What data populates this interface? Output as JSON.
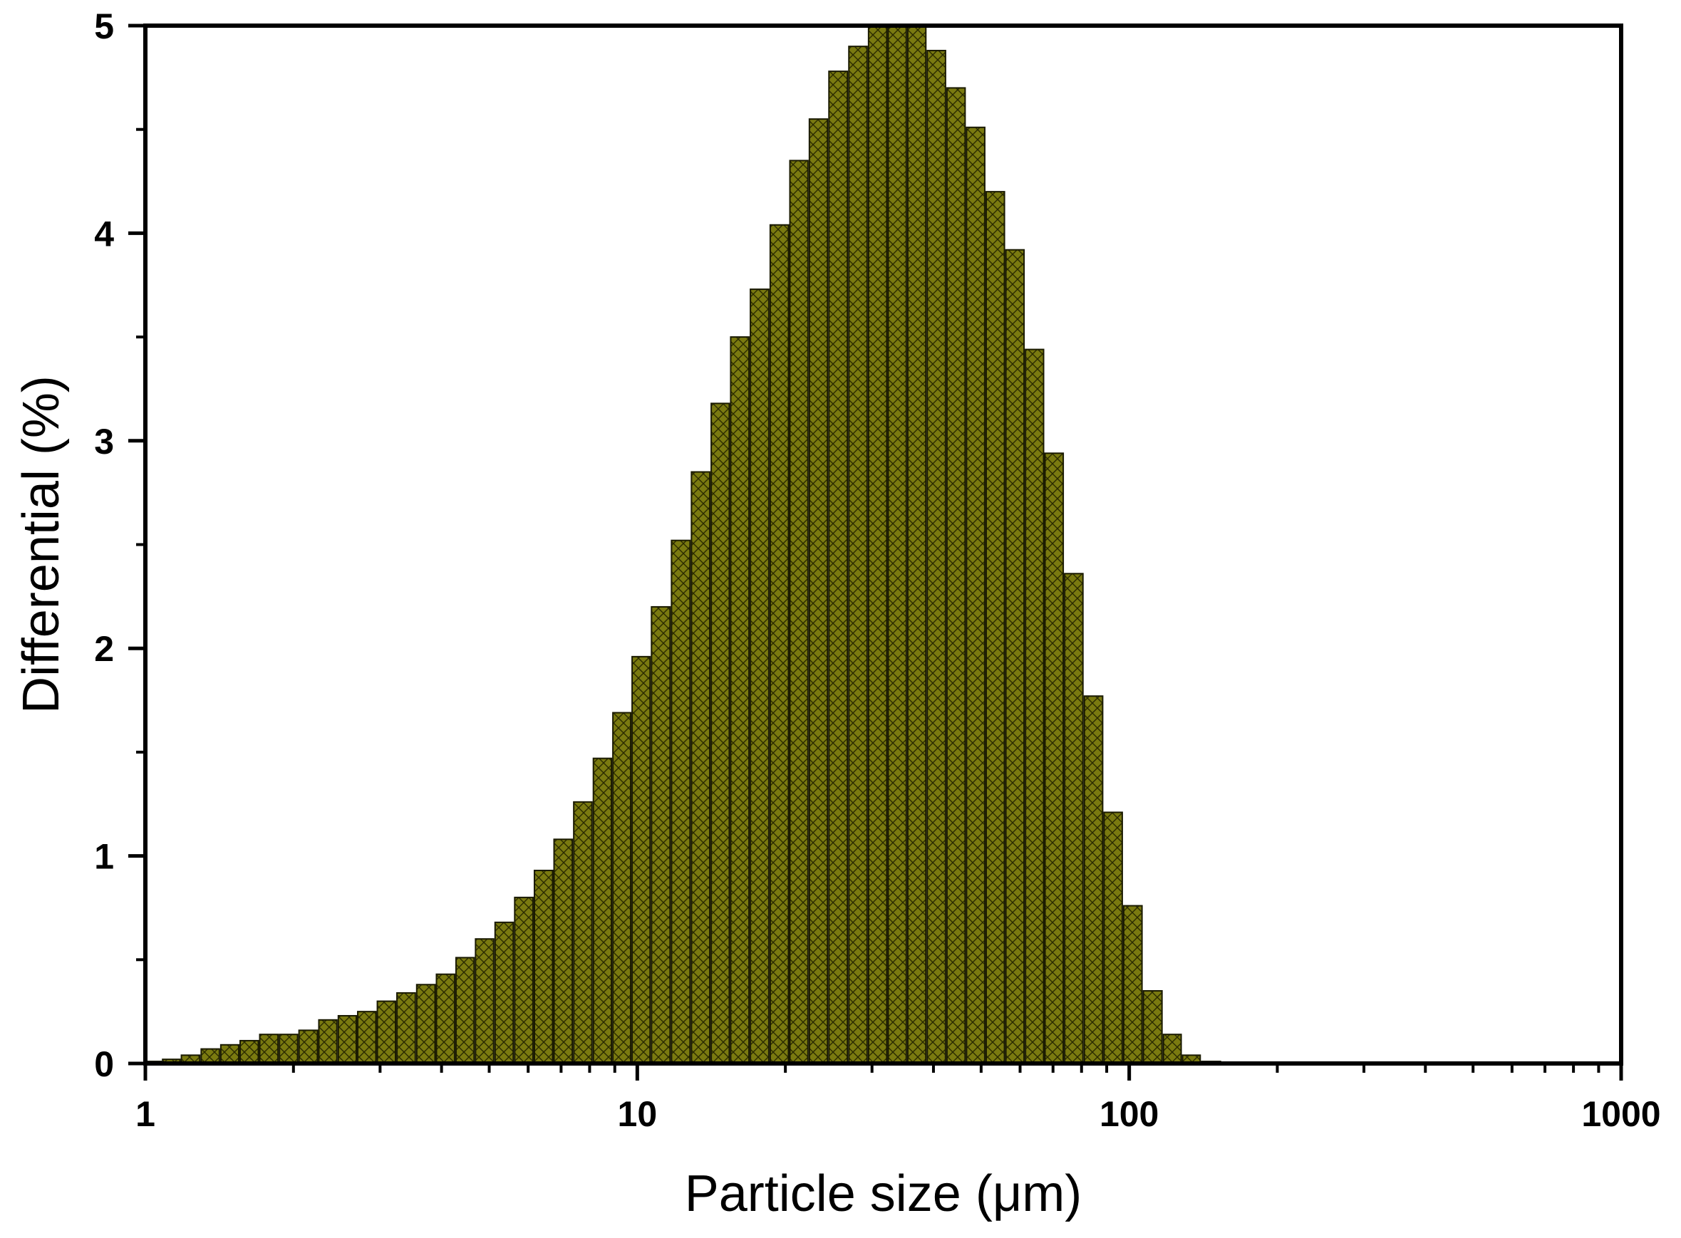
{
  "chart_data": {
    "type": "bar",
    "xlabel": "Particle size (μm)",
    "ylabel": "Differential (%)",
    "x_scale": "log",
    "xlim": [
      1,
      1000
    ],
    "ylim": [
      0,
      5
    ],
    "x_ticks": [
      1,
      10,
      100,
      1000
    ],
    "x_tick_labels": [
      "1",
      "10",
      "100",
      "1000"
    ],
    "y_ticks": [
      0,
      1,
      2,
      3,
      4,
      5
    ],
    "y_tick_labels": [
      "0",
      "1",
      "2",
      "3",
      "4",
      "5"
    ],
    "grid": false,
    "legend": "none",
    "bar_color": "#7a7a10",
    "bar_edge_color": "#1a1a00",
    "series": [
      {
        "x": [
          1.04,
          1.13,
          1.24,
          1.36,
          1.49,
          1.63,
          1.79,
          1.96,
          2.15,
          2.36,
          2.58,
          2.83,
          3.1,
          3.4,
          3.73,
          4.09,
          4.48,
          4.91,
          5.38,
          5.9,
          6.47,
          7.09,
          7.78,
          8.52,
          9.34,
          10.2,
          11.2,
          12.3,
          13.5,
          14.8,
          16.2,
          17.8,
          19.5,
          21.4,
          23.4,
          25.7,
          28.2,
          30.9,
          33.9,
          37.1,
          40.7,
          44.6,
          48.9,
          53.6,
          58.8,
          64.4,
          70.6,
          77.4,
          84.9,
          93.1,
          102,
          112,
          123,
          134,
          147,
          162,
          177,
          194,
          213,
          233,
          256
        ],
        "values": [
          0.01,
          0.02,
          0.04,
          0.07,
          0.09,
          0.11,
          0.14,
          0.14,
          0.16,
          0.21,
          0.23,
          0.25,
          0.3,
          0.34,
          0.38,
          0.43,
          0.51,
          0.6,
          0.68,
          0.8,
          0.93,
          1.08,
          1.26,
          1.47,
          1.69,
          1.96,
          2.2,
          2.52,
          2.85,
          3.18,
          3.5,
          3.73,
          4.04,
          4.35,
          4.55,
          4.78,
          4.9,
          5.0,
          5.0,
          5.0,
          4.88,
          4.7,
          4.51,
          4.2,
          3.92,
          3.44,
          2.94,
          2.36,
          1.77,
          1.21,
          0.76,
          0.35,
          0.14,
          0.04,
          0.01,
          0.0,
          0.0,
          0.0,
          0.0,
          0.0,
          0.0
        ]
      }
    ]
  }
}
